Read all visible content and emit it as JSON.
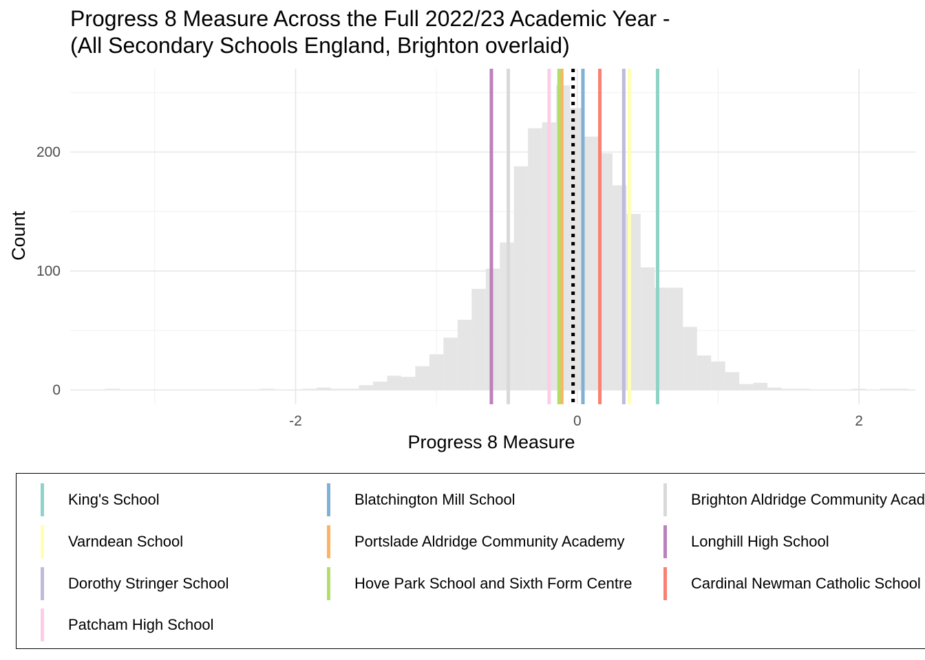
{
  "chart_data": {
    "type": "histogram",
    "title": "Progress 8 Measure Across the Full 2022/23 Academic Year -\n(All Secondary Schools England, Brighton overlaid)",
    "xlabel": "Progress 8 Measure",
    "ylabel": "Count",
    "xlim": [
      -3.6,
      2.4
    ],
    "ylim": [
      -12,
      270
    ],
    "x_ticks": [
      -2,
      0,
      2
    ],
    "y_ticks": [
      0,
      100,
      200
    ],
    "grid": true,
    "bin_width": 0.1,
    "bins": [
      {
        "x": -3.3,
        "count": 1
      },
      {
        "x": -2.2,
        "count": 1
      },
      {
        "x": -1.9,
        "count": 1
      },
      {
        "x": -1.8,
        "count": 2
      },
      {
        "x": -1.7,
        "count": 1
      },
      {
        "x": -1.6,
        "count": 1
      },
      {
        "x": -1.5,
        "count": 4
      },
      {
        "x": -1.4,
        "count": 7
      },
      {
        "x": -1.3,
        "count": 12
      },
      {
        "x": -1.2,
        "count": 11
      },
      {
        "x": -1.1,
        "count": 20
      },
      {
        "x": -1.0,
        "count": 30
      },
      {
        "x": -0.9,
        "count": 44
      },
      {
        "x": -0.8,
        "count": 59
      },
      {
        "x": -0.7,
        "count": 85
      },
      {
        "x": -0.6,
        "count": 102
      },
      {
        "x": -0.5,
        "count": 124
      },
      {
        "x": -0.4,
        "count": 188
      },
      {
        "x": -0.3,
        "count": 220
      },
      {
        "x": -0.2,
        "count": 225
      },
      {
        "x": -0.1,
        "count": 256
      },
      {
        "x": 0.0,
        "count": 237
      },
      {
        "x": 0.1,
        "count": 213
      },
      {
        "x": 0.2,
        "count": 199
      },
      {
        "x": 0.3,
        "count": 172
      },
      {
        "x": 0.4,
        "count": 148
      },
      {
        "x": 0.5,
        "count": 103
      },
      {
        "x": 0.6,
        "count": 86
      },
      {
        "x": 0.7,
        "count": 86
      },
      {
        "x": 0.8,
        "count": 53
      },
      {
        "x": 0.9,
        "count": 29
      },
      {
        "x": 1.0,
        "count": 24
      },
      {
        "x": 1.1,
        "count": 15
      },
      {
        "x": 1.2,
        "count": 5
      },
      {
        "x": 1.3,
        "count": 6
      },
      {
        "x": 1.4,
        "count": 2
      },
      {
        "x": 1.5,
        "count": 1
      },
      {
        "x": 1.6,
        "count": 1
      },
      {
        "x": 2.0,
        "count": 1
      },
      {
        "x": 2.2,
        "count": 1
      },
      {
        "x": 2.3,
        "count": 1
      }
    ],
    "mean_line": {
      "x": -0.03,
      "style": "dotted",
      "color": "#000000"
    },
    "series": [
      {
        "name": "King's School",
        "x": 0.57,
        "color": "#8DD3C7"
      },
      {
        "name": "Blatchington Mill School",
        "x": 0.04,
        "color": "#80B1D3"
      },
      {
        "name": "Brighton Aldridge Community Academy",
        "x": -0.49,
        "color": "#D9D9D9"
      },
      {
        "name": "Varndean School",
        "x": 0.37,
        "color": "#FFFFB3"
      },
      {
        "name": "Portslade Aldridge Community Academy",
        "x": -0.11,
        "color": "#FDB462"
      },
      {
        "name": "Longhill High School",
        "x": -0.61,
        "color": "#BC80BD"
      },
      {
        "name": "Dorothy Stringer School",
        "x": 0.33,
        "color": "#BEBADA"
      },
      {
        "name": "Hove Park School and Sixth Form Centre",
        "x": -0.13,
        "color": "#B3DE69"
      },
      {
        "name": "Cardinal Newman Catholic School",
        "x": 0.16,
        "color": "#FB8072"
      },
      {
        "name": "Patcham High School",
        "x": -0.2,
        "color": "#FCCDE5"
      }
    ],
    "legend_placement": "bottom"
  }
}
